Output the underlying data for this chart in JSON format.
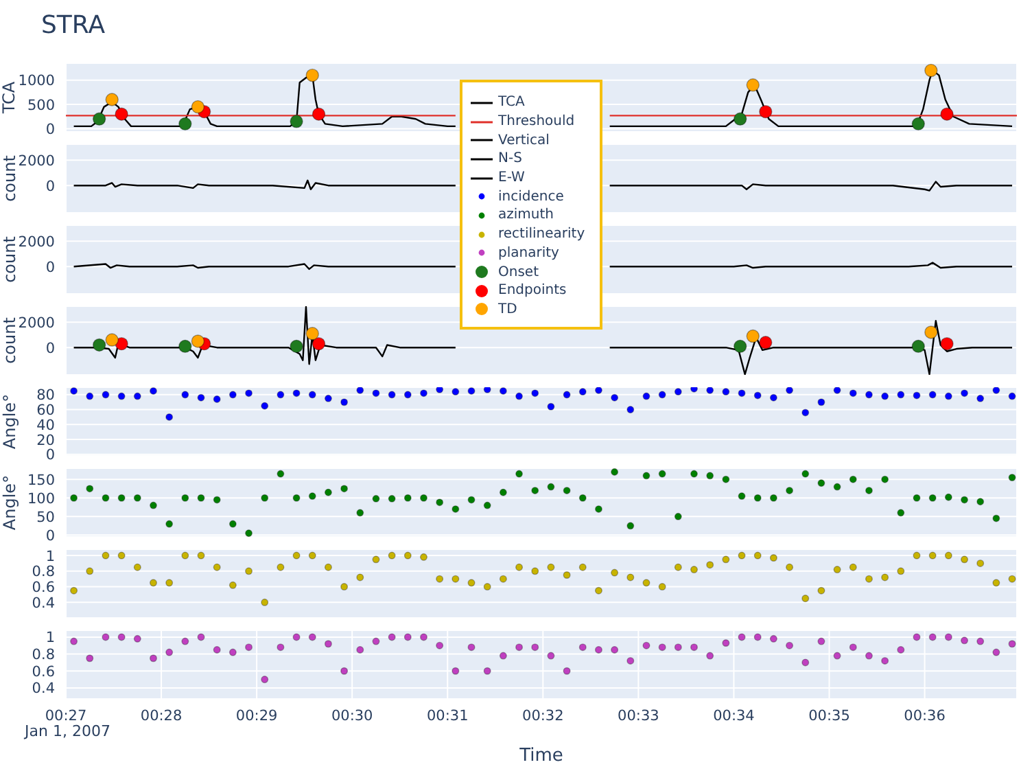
{
  "chart_data": [
    {
      "type": "line",
      "title": "STRA",
      "ylabel": "TCA",
      "xlim": [
        "2007-01-01T00:27:00",
        "2007-01-01T00:36:58"
      ],
      "ylim": [
        -65,
        1350
      ],
      "yticks": [
        0,
        500,
        1000
      ],
      "xticks": [
        {
          "value": "2007-01-01T00:27",
          "label": null
        },
        {
          "value": "2007-01-01T00:28",
          "label": null
        },
        {
          "value": "2007-01-01T00:29",
          "label": null
        },
        {
          "value": "2007-01-01T00:30",
          "label": null
        },
        {
          "value": "2007-01-01T00:31",
          "label": null
        },
        {
          "value": "2007-01-01T00:32",
          "label": null
        },
        {
          "value": "2007-01-01T00:33",
          "label": null
        },
        {
          "value": "2007-01-01T00:34",
          "label": null
        },
        {
          "value": "2007-01-01T00:35",
          "label": null
        },
        {
          "value": "2007-01-01T00:36",
          "label": null
        }
      ],
      "tick_labels": "y",
      "grid": true,
      "legend": "bottom",
      "series": [
        {
          "name": "TCA",
          "color": "#000000",
          "x": [
            "2007-01-01T00:27:05",
            "2007-01-01T00:27:16",
            "2007-01-01T00:27:20",
            "2007-01-01T00:27:24",
            "2007-01-01T00:27:29",
            "2007-01-01T00:27:33",
            "2007-01-01T00:27:37",
            "2007-01-01T00:27:41",
            "2007-01-01T00:27:54",
            "2007-01-01T00:28:12",
            "2007-01-01T00:28:14",
            "2007-01-01T00:28:18",
            "2007-01-01T00:28:23",
            "2007-01-01T00:28:27",
            "2007-01-01T00:28:31",
            "2007-01-01T00:28:35",
            "2007-01-01T00:29:21",
            "2007-01-01T00:29:25",
            "2007-01-01T00:29:27",
            "2007-01-01T00:29:31",
            "2007-01-01T00:29:35",
            "2007-01-01T00:29:37",
            "2007-01-01T00:29:39",
            "2007-01-01T00:29:43",
            "2007-01-01T00:29:54",
            "2007-01-01T00:30:19",
            "2007-01-01T00:30:25",
            "2007-01-01T00:30:31",
            "2007-01-01T00:30:40",
            "2007-01-01T00:30:46",
            "2007-01-01T00:31:00",
            "2007-01-01T00:31:05",
            "2007-01-01T00:31:30",
            "2007-01-01T00:32:42",
            "2007-01-01T00:33:55",
            "2007-01-01T00:33:59",
            "2007-01-01T00:34:05",
            "2007-01-01T00:34:09",
            "2007-01-01T00:34:13",
            "2007-01-01T00:34:17",
            "2007-01-01T00:34:22",
            "2007-01-01T00:34:28",
            "2007-01-01T00:35:18",
            "2007-01-01T00:35:55",
            "2007-01-01T00:35:59",
            "2007-01-01T00:36:03",
            "2007-01-01T00:36:05",
            "2007-01-01T00:36:09",
            "2007-01-01T00:36:13",
            "2007-01-01T00:36:18",
            "2007-01-01T00:36:28",
            "2007-01-01T00:36:55"
          ],
          "values": [
            50,
            50,
            150,
            450,
            550,
            450,
            200,
            50,
            50,
            50,
            100,
            400,
            450,
            350,
            100,
            50,
            50,
            150,
            950,
            1050,
            1100,
            600,
            300,
            100,
            50,
            100,
            250,
            250,
            200,
            100,
            50,
            50,
            null,
            50,
            50,
            150,
            300,
            750,
            900,
            600,
            200,
            50,
            50,
            50,
            400,
            1000,
            1200,
            1100,
            600,
            250,
            100,
            50
          ]
        },
        {
          "name": "Threshould",
          "color": "#e0302a",
          "x": [
            "2007-01-01T00:27:00",
            "2007-01-01T00:31:05",
            "2007-01-01T00:31:30",
            "2007-01-01T00:32:42",
            "2007-01-01T00:36:58"
          ],
          "values": [
            270,
            270,
            null,
            270,
            270
          ]
        },
        {
          "name": "Onset",
          "type": "scatter",
          "marker": "circle",
          "color": "#1f7a1f",
          "x": [
            "2007-01-01T00:27:21",
            "2007-01-01T00:28:15",
            "2007-01-01T00:29:25",
            "2007-01-01T00:34:04",
            "2007-01-01T00:35:56"
          ],
          "values": [
            200,
            100,
            150,
            200,
            100
          ]
        },
        {
          "name": "Endpoints",
          "type": "scatter",
          "marker": "circle",
          "color": "#ff0000",
          "x": [
            "2007-01-01T00:27:35",
            "2007-01-01T00:28:27",
            "2007-01-01T00:29:39",
            "2007-01-01T00:34:20",
            "2007-01-01T00:36:14"
          ],
          "values": [
            300,
            350,
            300,
            350,
            300
          ]
        },
        {
          "name": "TD",
          "type": "scatter",
          "marker": "circle",
          "color": "#ffa500",
          "x": [
            "2007-01-01T00:27:29",
            "2007-01-01T00:28:23",
            "2007-01-01T00:29:35",
            "2007-01-01T00:34:12",
            "2007-01-01T00:36:04"
          ],
          "values": [
            600,
            450,
            1100,
            900,
            1200
          ]
        }
      ]
    },
    {
      "type": "line",
      "ylabel": "count",
      "xlim": [
        "2007-01-01T00:27:00",
        "2007-01-01T00:36:58"
      ],
      "ylim": [
        -2150,
        3250
      ],
      "yticks": [
        0,
        2000
      ],
      "xticks": [
        {
          "value": "2007-01-01T00:27",
          "label": null
        },
        {
          "value": "2007-01-01T00:28",
          "label": null
        },
        {
          "value": "2007-01-01T00:29",
          "label": null
        },
        {
          "value": "2007-01-01T00:30",
          "label": null
        },
        {
          "value": "2007-01-01T00:31",
          "label": null
        },
        {
          "value": "2007-01-01T00:32",
          "label": null
        },
        {
          "value": "2007-01-01T00:33",
          "label": null
        },
        {
          "value": "2007-01-01T00:34",
          "label": null
        },
        {
          "value": "2007-01-01T00:35",
          "label": null
        },
        {
          "value": "2007-01-01T00:36",
          "label": null
        }
      ],
      "tick_labels": "y",
      "grid": true,
      "series": [
        {
          "name": "Vertical",
          "color": "#000000",
          "x": [
            "2007-01-01T00:27:05",
            "2007-01-01T00:27:25",
            "2007-01-01T00:27:29",
            "2007-01-01T00:27:31",
            "2007-01-01T00:27:35",
            "2007-01-01T00:27:45",
            "2007-01-01T00:28:10",
            "2007-01-01T00:28:20",
            "2007-01-01T00:28:23",
            "2007-01-01T00:28:30",
            "2007-01-01T00:29:10",
            "2007-01-01T00:29:30",
            "2007-01-01T00:29:32",
            "2007-01-01T00:29:34",
            "2007-01-01T00:29:37",
            "2007-01-01T00:29:45",
            "2007-01-01T00:30:20",
            "2007-01-01T00:30:40",
            "2007-01-01T00:31:05",
            "2007-01-01T00:31:30",
            "2007-01-01T00:32:42",
            "2007-01-01T00:33:30",
            "2007-01-01T00:34:05",
            "2007-01-01T00:34:08",
            "2007-01-01T00:34:12",
            "2007-01-01T00:34:20",
            "2007-01-01T00:35:00",
            "2007-01-01T00:35:40",
            "2007-01-01T00:36:00",
            "2007-01-01T00:36:03",
            "2007-01-01T00:36:07",
            "2007-01-01T00:36:10",
            "2007-01-01T00:36:20",
            "2007-01-01T00:36:55"
          ],
          "values": [
            0,
            0,
            200,
            -100,
            100,
            0,
            0,
            -200,
            100,
            0,
            0,
            -200,
            400,
            -300,
            200,
            0,
            0,
            0,
            0,
            null,
            0,
            0,
            0,
            -300,
            100,
            0,
            0,
            0,
            -300,
            -400,
            300,
            -100,
            0,
            0
          ]
        }
      ]
    },
    {
      "type": "line",
      "ylabel": "count",
      "xlim": [
        "2007-01-01T00:27:00",
        "2007-01-01T00:36:58"
      ],
      "ylim": [
        -2150,
        3250
      ],
      "yticks": [
        0,
        2000
      ],
      "xticks": [
        {
          "value": "2007-01-01T00:27",
          "label": null
        },
        {
          "value": "2007-01-01T00:28",
          "label": null
        },
        {
          "value": "2007-01-01T00:29",
          "label": null
        },
        {
          "value": "2007-01-01T00:30",
          "label": null
        },
        {
          "value": "2007-01-01T00:31",
          "label": null
        },
        {
          "value": "2007-01-01T00:32",
          "label": null
        },
        {
          "value": "2007-01-01T00:33",
          "label": null
        },
        {
          "value": "2007-01-01T00:34",
          "label": null
        },
        {
          "value": "2007-01-01T00:35",
          "label": null
        },
        {
          "value": "2007-01-01T00:36",
          "label": null
        }
      ],
      "tick_labels": "y",
      "grid": true,
      "series": [
        {
          "name": "N-S",
          "color": "#000000",
          "x": [
            "2007-01-01T00:27:05",
            "2007-01-01T00:27:25",
            "2007-01-01T00:27:28",
            "2007-01-01T00:27:32",
            "2007-01-01T00:27:40",
            "2007-01-01T00:28:10",
            "2007-01-01T00:28:20",
            "2007-01-01T00:28:23",
            "2007-01-01T00:28:30",
            "2007-01-01T00:29:20",
            "2007-01-01T00:29:30",
            "2007-01-01T00:29:33",
            "2007-01-01T00:29:36",
            "2007-01-01T00:29:45",
            "2007-01-01T00:31:05",
            "2007-01-01T00:31:30",
            "2007-01-01T00:32:42",
            "2007-01-01T00:34:00",
            "2007-01-01T00:34:08",
            "2007-01-01T00:34:12",
            "2007-01-01T00:34:20",
            "2007-01-01T00:35:50",
            "2007-01-01T00:36:02",
            "2007-01-01T00:36:05",
            "2007-01-01T00:36:10",
            "2007-01-01T00:36:20",
            "2007-01-01T00:36:55"
          ],
          "values": [
            0,
            200,
            -100,
            100,
            0,
            0,
            100,
            -100,
            0,
            0,
            200,
            -200,
            100,
            0,
            0,
            null,
            0,
            0,
            100,
            -100,
            0,
            0,
            100,
            300,
            -100,
            0,
            0
          ]
        }
      ]
    },
    {
      "type": "line",
      "ylabel": "count",
      "xlim": [
        "2007-01-01T00:27:00",
        "2007-01-01T00:36:58"
      ],
      "ylim": [
        -2150,
        3250
      ],
      "yticks": [
        0,
        2000
      ],
      "xticks": [
        {
          "value": "2007-01-01T00:27",
          "label": null
        },
        {
          "value": "2007-01-01T00:28",
          "label": null
        },
        {
          "value": "2007-01-01T00:29",
          "label": null
        },
        {
          "value": "2007-01-01T00:30",
          "label": null
        },
        {
          "value": "2007-01-01T00:31",
          "label": null
        },
        {
          "value": "2007-01-01T00:32",
          "label": null
        },
        {
          "value": "2007-01-01T00:33",
          "label": null
        },
        {
          "value": "2007-01-01T00:34",
          "label": null
        },
        {
          "value": "2007-01-01T00:35",
          "label": null
        },
        {
          "value": "2007-01-01T00:36",
          "label": null
        }
      ],
      "tick_labels": "y",
      "grid": true,
      "series": [
        {
          "name": "E-W",
          "color": "#000000",
          "x": [
            "2007-01-01T00:27:05",
            "2007-01-01T00:27:20",
            "2007-01-01T00:27:27",
            "2007-01-01T00:27:31",
            "2007-01-01T00:27:33",
            "2007-01-01T00:27:40",
            "2007-01-01T00:28:15",
            "2007-01-01T00:28:20",
            "2007-01-01T00:28:23",
            "2007-01-01T00:28:26",
            "2007-01-01T00:28:35",
            "2007-01-01T00:29:20",
            "2007-01-01T00:29:27",
            "2007-01-01T00:29:29",
            "2007-01-01T00:29:31",
            "2007-01-01T00:29:33",
            "2007-01-01T00:29:35",
            "2007-01-01T00:29:37",
            "2007-01-01T00:29:40",
            "2007-01-01T00:29:50",
            "2007-01-01T00:30:15",
            "2007-01-01T00:30:19",
            "2007-01-01T00:30:22",
            "2007-01-01T00:30:30",
            "2007-01-01T00:31:05",
            "2007-01-01T00:31:30",
            "2007-01-01T00:32:42",
            "2007-01-01T00:33:55",
            "2007-01-01T00:34:03",
            "2007-01-01T00:34:07",
            "2007-01-01T00:34:10",
            "2007-01-01T00:34:14",
            "2007-01-01T00:34:18",
            "2007-01-01T00:34:25",
            "2007-01-01T00:35:55",
            "2007-01-01T00:36:00",
            "2007-01-01T00:36:03",
            "2007-01-01T00:36:07",
            "2007-01-01T00:36:10",
            "2007-01-01T00:36:14",
            "2007-01-01T00:36:20",
            "2007-01-01T00:36:30",
            "2007-01-01T00:36:55"
          ],
          "values": [
            0,
            0,
            -100,
            -800,
            300,
            0,
            0,
            -300,
            -800,
            200,
            0,
            0,
            -500,
            -1000,
            3200,
            -1300,
            1000,
            -1000,
            200,
            0,
            0,
            -700,
            200,
            0,
            0,
            null,
            0,
            0,
            -200,
            -2100,
            -800,
            800,
            -200,
            0,
            0,
            -200,
            -2100,
            2100,
            200,
            -300,
            -100,
            0,
            0
          ]
        },
        {
          "type": "scatter",
          "marker": "circle",
          "color": "#1f7a1f",
          "x": [
            "2007-01-01T00:27:21",
            "2007-01-01T00:28:15",
            "2007-01-01T00:29:25",
            "2007-01-01T00:34:04",
            "2007-01-01T00:35:56"
          ],
          "values": [
            200,
            100,
            100,
            100,
            100
          ]
        },
        {
          "type": "scatter",
          "marker": "circle",
          "color": "#ff0000",
          "x": [
            "2007-01-01T00:27:35",
            "2007-01-01T00:28:27",
            "2007-01-01T00:29:39",
            "2007-01-01T00:34:20",
            "2007-01-01T00:36:14"
          ],
          "values": [
            300,
            300,
            300,
            400,
            300
          ]
        },
        {
          "type": "scatter",
          "marker": "circle",
          "color": "#ffa500",
          "x": [
            "2007-01-01T00:27:29",
            "2007-01-01T00:28:23",
            "2007-01-01T00:29:35",
            "2007-01-01T00:34:12",
            "2007-01-01T00:36:04"
          ],
          "values": [
            600,
            500,
            1100,
            900,
            1200
          ]
        }
      ]
    },
    {
      "type": "scatter",
      "marker": "circle",
      "ylabel": "Angle°",
      "xlim": [
        "2007-01-01T00:27:00",
        "2007-01-01T00:36:58"
      ],
      "ylim": [
        -2,
        90
      ],
      "yticks": [
        0,
        20,
        40,
        60,
        80
      ],
      "xticks": [
        {
          "value": "2007-01-01T00:27",
          "label": null
        },
        {
          "value": "2007-01-01T00:28",
          "label": null
        },
        {
          "value": "2007-01-01T00:29",
          "label": null
        },
        {
          "value": "2007-01-01T00:30",
          "label": null
        },
        {
          "value": "2007-01-01T00:31",
          "label": null
        },
        {
          "value": "2007-01-01T00:32",
          "label": null
        },
        {
          "value": "2007-01-01T00:33",
          "label": null
        },
        {
          "value": "2007-01-01T00:34",
          "label": null
        },
        {
          "value": "2007-01-01T00:35",
          "label": null
        },
        {
          "value": "2007-01-01T00:36",
          "label": null
        }
      ],
      "tick_labels": "y",
      "grid": true,
      "x": [
        "2007-01-01T00:27:05",
        "2007-01-01T00:27:15",
        "2007-01-01T00:27:25",
        "2007-01-01T00:27:35",
        "2007-01-01T00:27:45",
        "2007-01-01T00:27:55",
        "2007-01-01T00:28:05",
        "2007-01-01T00:28:15",
        "2007-01-01T00:28:25",
        "2007-01-01T00:28:35",
        "2007-01-01T00:28:45",
        "2007-01-01T00:28:55",
        "2007-01-01T00:29:05",
        "2007-01-01T00:29:15",
        "2007-01-01T00:29:25",
        "2007-01-01T00:29:35",
        "2007-01-01T00:29:45",
        "2007-01-01T00:29:55",
        "2007-01-01T00:30:05",
        "2007-01-01T00:30:15",
        "2007-01-01T00:30:25",
        "2007-01-01T00:30:35",
        "2007-01-01T00:30:45",
        "2007-01-01T00:30:55",
        "2007-01-01T00:31:05",
        "2007-01-01T00:31:15",
        "2007-01-01T00:31:25",
        "2007-01-01T00:31:35",
        "2007-01-01T00:31:45",
        "2007-01-01T00:31:55",
        "2007-01-01T00:32:05",
        "2007-01-01T00:32:15",
        "2007-01-01T00:32:25",
        "2007-01-01T00:32:35",
        "2007-01-01T00:32:45",
        "2007-01-01T00:32:55",
        "2007-01-01T00:33:05",
        "2007-01-01T00:33:15",
        "2007-01-01T00:33:25",
        "2007-01-01T00:33:35",
        "2007-01-01T00:33:45",
        "2007-01-01T00:33:55",
        "2007-01-01T00:34:05",
        "2007-01-01T00:34:15",
        "2007-01-01T00:34:25",
        "2007-01-01T00:34:35",
        "2007-01-01T00:34:45",
        "2007-01-01T00:34:55",
        "2007-01-01T00:35:05",
        "2007-01-01T00:35:15",
        "2007-01-01T00:35:25",
        "2007-01-01T00:35:35",
        "2007-01-01T00:35:45",
        "2007-01-01T00:35:55",
        "2007-01-01T00:36:05",
        "2007-01-01T00:36:15",
        "2007-01-01T00:36:25",
        "2007-01-01T00:36:35",
        "2007-01-01T00:36:45",
        "2007-01-01T00:36:55"
      ],
      "series": [
        {
          "name": "incidence",
          "color": "#0000ff",
          "values": [
            85,
            78,
            80,
            78,
            78,
            85,
            50,
            80,
            76,
            74,
            80,
            82,
            65,
            80,
            82,
            80,
            75,
            70,
            86,
            82,
            80,
            80,
            82,
            87,
            84,
            85,
            87,
            85,
            78,
            82,
            64,
            80,
            84,
            86,
            76,
            60,
            78,
            80,
            84,
            88,
            86,
            84,
            82,
            79,
            76,
            86,
            56,
            70,
            86,
            82,
            80,
            78,
            80,
            79,
            80,
            78,
            82,
            75,
            86,
            78
          ]
        }
      ]
    },
    {
      "type": "scatter",
      "marker": "circle",
      "ylabel": "Angle°",
      "xlim": [
        "2007-01-01T00:27:00",
        "2007-01-01T00:36:58"
      ],
      "ylim": [
        -5,
        180
      ],
      "yticks": [
        0,
        50,
        100,
        150
      ],
      "xticks": [
        {
          "value": "2007-01-01T00:27",
          "label": null
        },
        {
          "value": "2007-01-01T00:28",
          "label": null
        },
        {
          "value": "2007-01-01T00:29",
          "label": null
        },
        {
          "value": "2007-01-01T00:30",
          "label": null
        },
        {
          "value": "2007-01-01T00:31",
          "label": null
        },
        {
          "value": "2007-01-01T00:32",
          "label": null
        },
        {
          "value": "2007-01-01T00:33",
          "label": null
        },
        {
          "value": "2007-01-01T00:34",
          "label": null
        },
        {
          "value": "2007-01-01T00:35",
          "label": null
        },
        {
          "value": "2007-01-01T00:36",
          "label": null
        }
      ],
      "tick_labels": "y",
      "grid": true,
      "x": [
        "2007-01-01T00:27:05",
        "2007-01-01T00:27:15",
        "2007-01-01T00:27:25",
        "2007-01-01T00:27:35",
        "2007-01-01T00:27:45",
        "2007-01-01T00:27:55",
        "2007-01-01T00:28:05",
        "2007-01-01T00:28:15",
        "2007-01-01T00:28:25",
        "2007-01-01T00:28:35",
        "2007-01-01T00:28:45",
        "2007-01-01T00:28:55",
        "2007-01-01T00:29:05",
        "2007-01-01T00:29:15",
        "2007-01-01T00:29:25",
        "2007-01-01T00:29:35",
        "2007-01-01T00:29:45",
        "2007-01-01T00:29:55",
        "2007-01-01T00:30:05",
        "2007-01-01T00:30:15",
        "2007-01-01T00:30:25",
        "2007-01-01T00:30:35",
        "2007-01-01T00:30:45",
        "2007-01-01T00:30:55",
        "2007-01-01T00:31:05",
        "2007-01-01T00:31:15",
        "2007-01-01T00:31:25",
        "2007-01-01T00:31:35",
        "2007-01-01T00:31:45",
        "2007-01-01T00:31:55",
        "2007-01-01T00:32:05",
        "2007-01-01T00:32:15",
        "2007-01-01T00:32:25",
        "2007-01-01T00:32:35",
        "2007-01-01T00:32:45",
        "2007-01-01T00:32:55",
        "2007-01-01T00:33:05",
        "2007-01-01T00:33:15",
        "2007-01-01T00:33:25",
        "2007-01-01T00:33:35",
        "2007-01-01T00:33:45",
        "2007-01-01T00:33:55",
        "2007-01-01T00:34:05",
        "2007-01-01T00:34:15",
        "2007-01-01T00:34:25",
        "2007-01-01T00:34:35",
        "2007-01-01T00:34:45",
        "2007-01-01T00:34:55",
        "2007-01-01T00:35:05",
        "2007-01-01T00:35:15",
        "2007-01-01T00:35:25",
        "2007-01-01T00:35:35",
        "2007-01-01T00:35:45",
        "2007-01-01T00:35:55",
        "2007-01-01T00:36:05",
        "2007-01-01T00:36:15",
        "2007-01-01T00:36:25",
        "2007-01-01T00:36:35",
        "2007-01-01T00:36:45",
        "2007-01-01T00:36:55"
      ],
      "series": [
        {
          "name": "azimuth",
          "color": "#008000",
          "values": [
            100,
            125,
            100,
            100,
            100,
            80,
            30,
            100,
            100,
            95,
            30,
            5,
            100,
            165,
            100,
            105,
            115,
            125,
            60,
            98,
            98,
            100,
            100,
            88,
            70,
            95,
            80,
            115,
            165,
            120,
            130,
            120,
            100,
            70,
            170,
            25,
            160,
            165,
            50,
            165,
            160,
            150,
            105,
            100,
            100,
            120,
            165,
            140,
            130,
            150,
            120,
            150,
            60,
            100,
            100,
            102,
            95,
            90,
            45,
            155
          ]
        }
      ]
    },
    {
      "type": "scatter",
      "marker": "circle",
      "xlim": [
        "2007-01-01T00:27:00",
        "2007-01-01T00:36:58"
      ],
      "ylim": [
        0.2,
        1.08
      ],
      "yticks": [
        0.4,
        0.6,
        0.8,
        1
      ],
      "xticks": [
        {
          "value": "2007-01-01T00:27",
          "label": null
        },
        {
          "value": "2007-01-01T00:28",
          "label": null
        },
        {
          "value": "2007-01-01T00:29",
          "label": null
        },
        {
          "value": "2007-01-01T00:30",
          "label": null
        },
        {
          "value": "2007-01-01T00:31",
          "label": null
        },
        {
          "value": "2007-01-01T00:32",
          "label": null
        },
        {
          "value": "2007-01-01T00:33",
          "label": null
        },
        {
          "value": "2007-01-01T00:34",
          "label": null
        },
        {
          "value": "2007-01-01T00:35",
          "label": null
        },
        {
          "value": "2007-01-01T00:36",
          "label": null
        }
      ],
      "tick_labels": "y",
      "grid": true,
      "x": [
        "2007-01-01T00:27:05",
        "2007-01-01T00:27:15",
        "2007-01-01T00:27:25",
        "2007-01-01T00:27:35",
        "2007-01-01T00:27:45",
        "2007-01-01T00:27:55",
        "2007-01-01T00:28:05",
        "2007-01-01T00:28:15",
        "2007-01-01T00:28:25",
        "2007-01-01T00:28:35",
        "2007-01-01T00:28:45",
        "2007-01-01T00:28:55",
        "2007-01-01T00:29:05",
        "2007-01-01T00:29:15",
        "2007-01-01T00:29:25",
        "2007-01-01T00:29:35",
        "2007-01-01T00:29:45",
        "2007-01-01T00:29:55",
        "2007-01-01T00:30:05",
        "2007-01-01T00:30:15",
        "2007-01-01T00:30:25",
        "2007-01-01T00:30:35",
        "2007-01-01T00:30:45",
        "2007-01-01T00:30:55",
        "2007-01-01T00:31:05",
        "2007-01-01T00:31:15",
        "2007-01-01T00:31:25",
        "2007-01-01T00:31:35",
        "2007-01-01T00:31:45",
        "2007-01-01T00:31:55",
        "2007-01-01T00:32:05",
        "2007-01-01T00:32:15",
        "2007-01-01T00:32:25",
        "2007-01-01T00:32:35",
        "2007-01-01T00:32:45",
        "2007-01-01T00:32:55",
        "2007-01-01T00:33:05",
        "2007-01-01T00:33:15",
        "2007-01-01T00:33:25",
        "2007-01-01T00:33:35",
        "2007-01-01T00:33:45",
        "2007-01-01T00:33:55",
        "2007-01-01T00:34:05",
        "2007-01-01T00:34:15",
        "2007-01-01T00:34:25",
        "2007-01-01T00:34:35",
        "2007-01-01T00:34:45",
        "2007-01-01T00:34:55",
        "2007-01-01T00:35:05",
        "2007-01-01T00:35:15",
        "2007-01-01T00:35:25",
        "2007-01-01T00:35:35",
        "2007-01-01T00:35:45",
        "2007-01-01T00:35:55",
        "2007-01-01T00:36:05",
        "2007-01-01T00:36:15",
        "2007-01-01T00:36:25",
        "2007-01-01T00:36:35",
        "2007-01-01T00:36:45",
        "2007-01-01T00:36:55"
      ],
      "series": [
        {
          "name": "rectilinearity",
          "color": "#c8b400",
          "values": [
            0.55,
            0.8,
            1,
            1,
            0.85,
            0.65,
            0.65,
            1,
            1,
            0.85,
            0.62,
            0.8,
            0.4,
            0.85,
            1,
            1,
            0.85,
            0.6,
            0.72,
            0.95,
            1,
            1,
            0.98,
            0.7,
            0.7,
            0.65,
            0.6,
            0.7,
            0.85,
            0.8,
            0.85,
            0.75,
            0.85,
            0.55,
            0.78,
            0.72,
            0.65,
            0.6,
            0.85,
            0.82,
            0.88,
            0.95,
            1,
            1,
            0.97,
            0.85,
            0.45,
            0.55,
            0.82,
            0.85,
            0.7,
            0.72,
            0.8,
            1,
            1,
            1,
            0.95,
            0.9,
            0.65,
            0.7
          ]
        }
      ]
    },
    {
      "type": "scatter",
      "marker": "circle",
      "xlabel": "Time",
      "annotations": [
        "Jan 1, 2007"
      ],
      "xlim": [
        "2007-01-01T00:27:00",
        "2007-01-01T00:36:58"
      ],
      "ylim": [
        0.27,
        1.08
      ],
      "yticks": [
        0.4,
        0.6,
        0.8,
        1
      ],
      "xticks": [
        {
          "value": "2007-01-01T00:27",
          "label": "00:27"
        },
        {
          "value": "2007-01-01T00:28",
          "label": "00:28"
        },
        {
          "value": "2007-01-01T00:29",
          "label": "00:29"
        },
        {
          "value": "2007-01-01T00:30",
          "label": "00:30"
        },
        {
          "value": "2007-01-01T00:31",
          "label": "00:31"
        },
        {
          "value": "2007-01-01T00:32",
          "label": "00:32"
        },
        {
          "value": "2007-01-01T00:33",
          "label": "00:33"
        },
        {
          "value": "2007-01-01T00:34",
          "label": "00:34"
        },
        {
          "value": "2007-01-01T00:35",
          "label": "00:35"
        },
        {
          "value": "2007-01-01T00:36",
          "label": "00:36"
        }
      ],
      "grid": true,
      "x": [
        "2007-01-01T00:27:05",
        "2007-01-01T00:27:15",
        "2007-01-01T00:27:25",
        "2007-01-01T00:27:35",
        "2007-01-01T00:27:45",
        "2007-01-01T00:27:55",
        "2007-01-01T00:28:05",
        "2007-01-01T00:28:15",
        "2007-01-01T00:28:25",
        "2007-01-01T00:28:35",
        "2007-01-01T00:28:45",
        "2007-01-01T00:28:55",
        "2007-01-01T00:29:05",
        "2007-01-01T00:29:15",
        "2007-01-01T00:29:25",
        "2007-01-01T00:29:35",
        "2007-01-01T00:29:45",
        "2007-01-01T00:29:55",
        "2007-01-01T00:30:05",
        "2007-01-01T00:30:15",
        "2007-01-01T00:30:25",
        "2007-01-01T00:30:35",
        "2007-01-01T00:30:45",
        "2007-01-01T00:30:55",
        "2007-01-01T00:31:05",
        "2007-01-01T00:31:15",
        "2007-01-01T00:31:25",
        "2007-01-01T00:31:35",
        "2007-01-01T00:31:45",
        "2007-01-01T00:31:55",
        "2007-01-01T00:32:05",
        "2007-01-01T00:32:15",
        "2007-01-01T00:32:25",
        "2007-01-01T00:32:35",
        "2007-01-01T00:32:45",
        "2007-01-01T00:32:55",
        "2007-01-01T00:33:05",
        "2007-01-01T00:33:15",
        "2007-01-01T00:33:25",
        "2007-01-01T00:33:35",
        "2007-01-01T00:33:45",
        "2007-01-01T00:33:55",
        "2007-01-01T00:34:05",
        "2007-01-01T00:34:15",
        "2007-01-01T00:34:25",
        "2007-01-01T00:34:35",
        "2007-01-01T00:34:45",
        "2007-01-01T00:34:55",
        "2007-01-01T00:35:05",
        "2007-01-01T00:35:15",
        "2007-01-01T00:35:25",
        "2007-01-01T00:35:35",
        "2007-01-01T00:35:45",
        "2007-01-01T00:35:55",
        "2007-01-01T00:36:05",
        "2007-01-01T00:36:15",
        "2007-01-01T00:36:25",
        "2007-01-01T00:36:35",
        "2007-01-01T00:36:45",
        "2007-01-01T00:36:55"
      ],
      "series": [
        {
          "name": "planarity",
          "color": "#c040c0",
          "values": [
            0.95,
            0.75,
            1,
            1,
            0.98,
            0.75,
            0.82,
            0.95,
            1,
            0.85,
            0.82,
            0.88,
            0.5,
            0.88,
            1,
            1,
            0.92,
            0.6,
            0.85,
            0.95,
            1,
            1,
            1,
            0.9,
            0.6,
            0.88,
            0.6,
            0.78,
            0.88,
            0.88,
            0.78,
            0.6,
            0.88,
            0.85,
            0.85,
            0.72,
            0.9,
            0.88,
            0.88,
            0.88,
            0.78,
            0.93,
            1,
            1,
            0.98,
            0.9,
            0.7,
            0.95,
            0.78,
            0.88,
            0.78,
            0.72,
            0.85,
            1,
            1,
            1,
            0.96,
            0.95,
            0.82,
            0.92
          ]
        }
      ]
    }
  ]
}
